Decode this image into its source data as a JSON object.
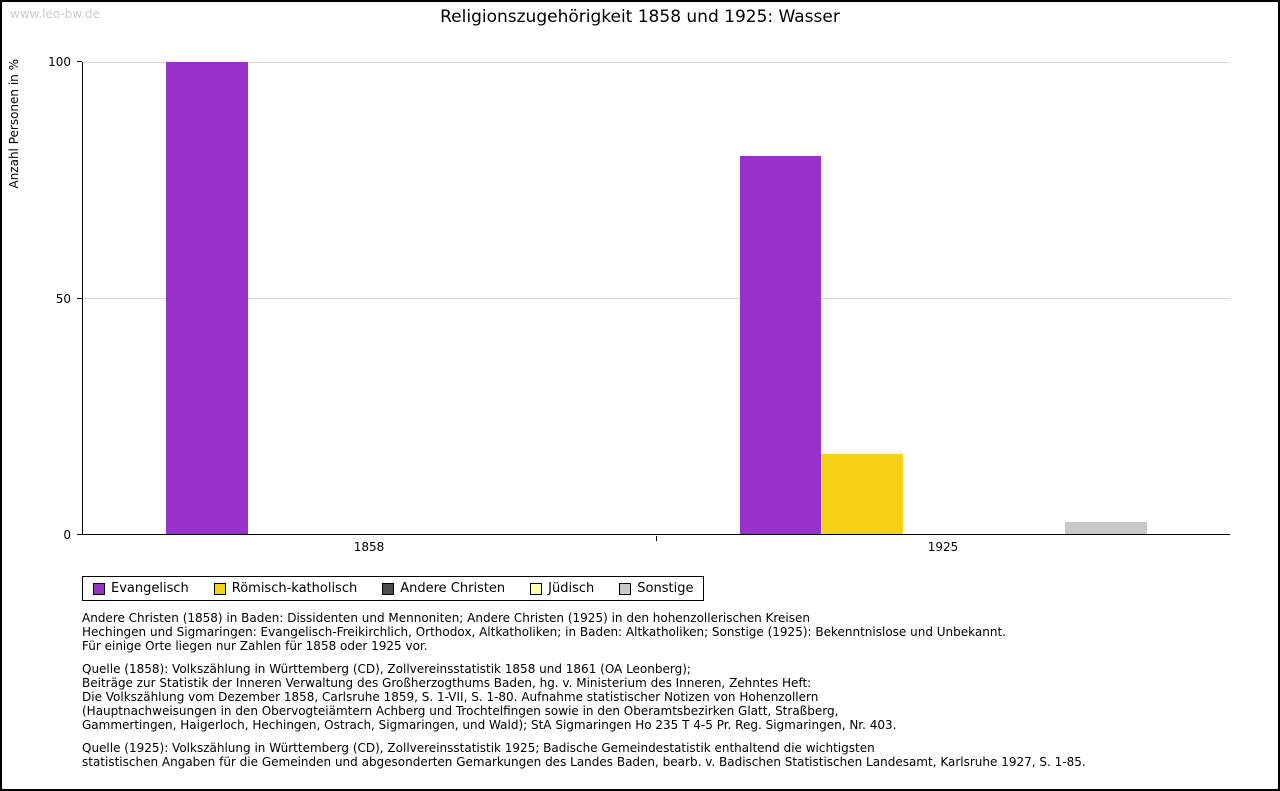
{
  "watermark": "www.leo-bw.de",
  "chart_data": {
    "type": "bar",
    "title": "Religionszugehörigkeit 1858 und 1925: Wasser",
    "ylabel": "Anzahl Personen in %",
    "ylim": [
      0,
      100
    ],
    "yticks": [
      0,
      50,
      100
    ],
    "grid": true,
    "legend_position": "bottom",
    "categories": [
      "1858",
      "1925"
    ],
    "series": [
      {
        "name": "Evangelisch",
        "color": "#9932cc",
        "values": [
          100,
          80
        ]
      },
      {
        "name": "Römisch-katholisch",
        "color": "#f7d118",
        "values": [
          0,
          17
        ]
      },
      {
        "name": "Andere Christen",
        "color": "#4d4d4d",
        "values": [
          0,
          0
        ]
      },
      {
        "name": "Jüdisch",
        "color": "#ffffaa",
        "values": [
          0,
          0
        ]
      },
      {
        "name": "Sonstige",
        "color": "#c8c8c8",
        "values": [
          0,
          2.5
        ]
      }
    ]
  },
  "footnotes": [
    "Andere Christen (1858) in Baden: Dissidenten und Mennoniten; Andere Christen (1925) in den hohenzollerischen Kreisen\nHechingen und Sigmaringen: Evangelisch-Freikirchlich, Orthodox, Altkatholiken; in Baden: Altkatholiken; Sonstige (1925): Bekenntnislose und Unbekannt.\nFür einige Orte liegen nur Zahlen für 1858 oder 1925 vor.",
    "Quelle (1858): Volkszählung in Württemberg (CD), Zollvereinsstatistik 1858 und 1861 (OA Leonberg);\nBeiträge zur Statistik der Inneren Verwaltung des Großherzogthums Baden, hg. v. Ministerium des Inneren, Zehntes Heft:\nDie Volkszählung vom Dezember 1858, Carlsruhe 1859, S. 1-VII, S. 1-80. Aufnahme statistischer Notizen von Hohenzollern\n(Hauptnachweisungen in den Obervogteiämtern Achberg und Trochtelfingen sowie in den Oberamtsbezirken Glatt, Straßberg,\nGammertingen, Haigerloch, Hechingen, Ostrach, Sigmaringen, und Wald); StA Sigmaringen Ho 235 T 4-5 Pr. Reg. Sigmaringen, Nr. 403.",
    "Quelle (1925): Volkszählung in Württemberg (CD), Zollvereinsstatistik 1925; Badische Gemeindestatistik enthaltend die wichtigsten\nstatistischen Angaben für die Gemeinden und abgesonderten Gemarkungen des Landes Baden, bearb. v. Badischen Statistischen Landesamt, Karlsruhe 1927, S. 1-85."
  ]
}
